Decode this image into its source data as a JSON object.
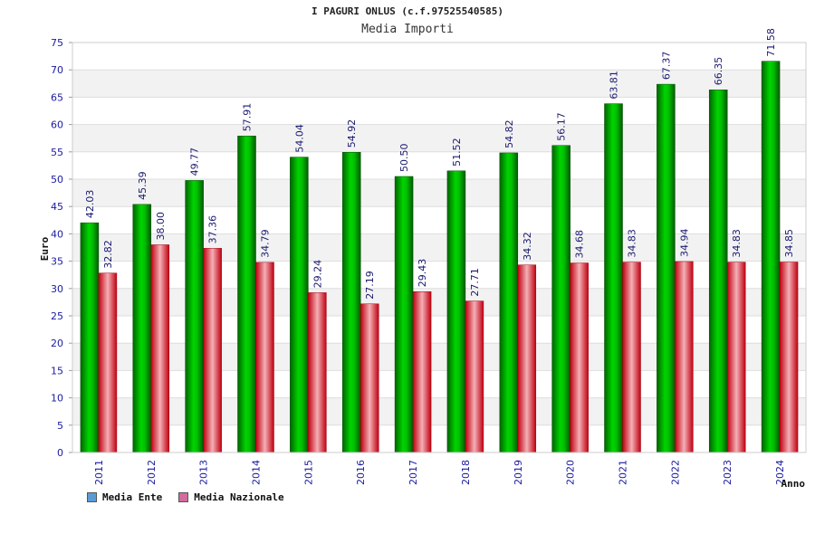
{
  "title": "I PAGURI ONLUS (c.f.97525540585)",
  "subtitle": "Media Importi",
  "chart_data": {
    "type": "bar",
    "title": "I PAGURI ONLUS (c.f.97525540585)",
    "subtitle": "Media Importi",
    "xlabel": "Anno",
    "ylabel": "Euro",
    "ylim": [
      0,
      75
    ],
    "yticks": [
      0,
      5,
      10,
      15,
      20,
      25,
      30,
      35,
      40,
      45,
      50,
      55,
      60,
      65,
      70,
      75
    ],
    "categories": [
      "2011",
      "2012",
      "2013",
      "2014",
      "2015",
      "2016",
      "2017",
      "2018",
      "2019",
      "2020",
      "2021",
      "2022",
      "2023",
      "2024"
    ],
    "series": [
      {
        "name": "Media Ente",
        "color": "#00b400",
        "legend_color": "#5b9bd5",
        "values": [
          42.03,
          45.39,
          49.77,
          57.91,
          54.04,
          54.92,
          50.5,
          51.52,
          54.82,
          56.17,
          63.81,
          67.37,
          66.35,
          71.58
        ],
        "labels": [
          "42.03",
          "45.39",
          "49.77",
          "57.91",
          "54.04",
          "54.92",
          "50.50",
          "51.52",
          "54.82",
          "56.17",
          "63.81",
          "67.37",
          "66.35",
          "71.58"
        ]
      },
      {
        "name": "Media Nazionale",
        "color": "#e8303a",
        "legend_color": "#d46aa0",
        "values": [
          32.82,
          38.0,
          37.36,
          34.79,
          29.24,
          27.19,
          29.43,
          27.71,
          34.32,
          34.68,
          34.83,
          34.94,
          34.83,
          34.85
        ],
        "labels": [
          "32.82",
          "38.00",
          "37.36",
          "34.79",
          "29.24",
          "27.19",
          "29.43",
          "27.71",
          "34.32",
          "34.68",
          "34.83",
          "34.94",
          "34.83",
          "34.85"
        ]
      }
    ],
    "grid": true,
    "legend_position": "bottom-left"
  }
}
